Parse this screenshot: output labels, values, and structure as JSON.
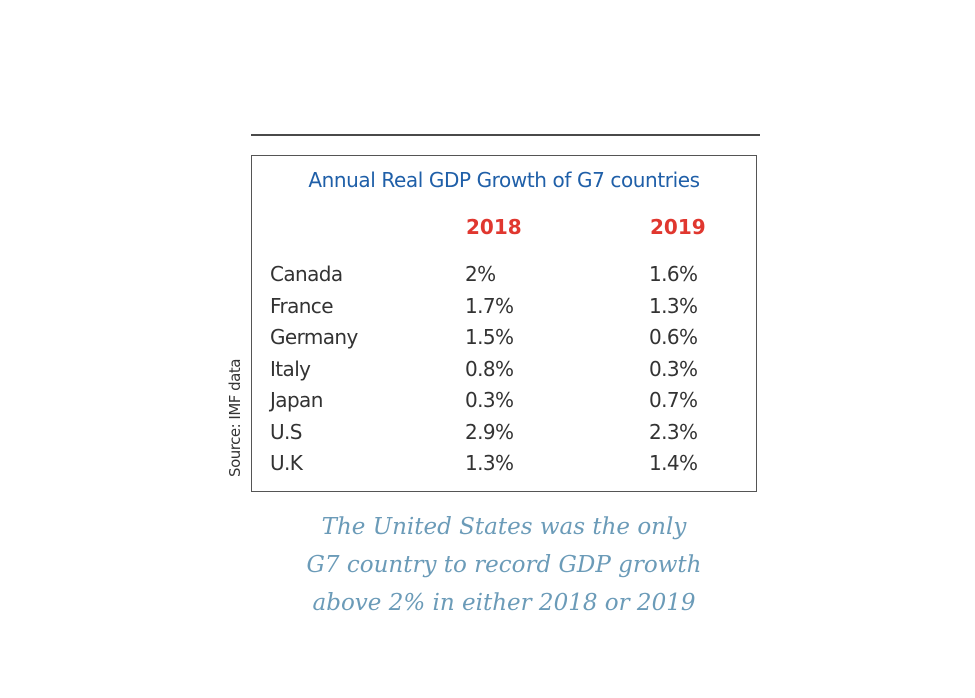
{
  "chart_data": {
    "type": "table",
    "title": "Annual Real GDP Growth of G7 countries",
    "columns": [
      "2018",
      "2019"
    ],
    "rows": [
      {
        "country": "Canada",
        "v2018": "2%",
        "v2019": "1.6%"
      },
      {
        "country": "France",
        "v2018": "1.7%",
        "v2019": "1.3%"
      },
      {
        "country": "Germany",
        "v2018": "1.5%",
        "v2019": "0.6%"
      },
      {
        "country": "Italy",
        "v2018": "0.8%",
        "v2019": "0.3%"
      },
      {
        "country": "Japan",
        "v2018": "0.3%",
        "v2019": "0.7%"
      },
      {
        "country": "U.S",
        "v2018": "2.9%",
        "v2019": "2.3%"
      },
      {
        "country": "U.K",
        "v2018": "1.3%",
        "v2019": "1.4%"
      }
    ],
    "source": "Source: IMF data",
    "caption": [
      "The United States was the only",
      "G7 country to record GDP growth",
      "above 2% in either 2018 or 2019"
    ],
    "colors": {
      "title": "#1f5fa8",
      "year_header": "#e0372f",
      "caption": "#6b9bb8",
      "text": "#333333"
    }
  }
}
